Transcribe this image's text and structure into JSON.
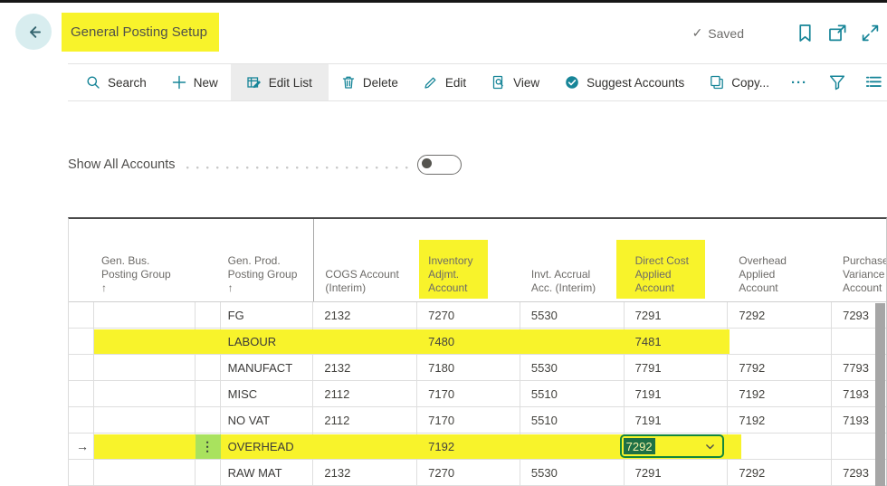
{
  "page": {
    "title": "General Posting Setup",
    "saved_check": "✓",
    "saved_label": "Saved"
  },
  "toolbar": {
    "items": [
      {
        "label": "Search",
        "icon": "search-icon"
      },
      {
        "label": "New",
        "icon": "plus-icon"
      },
      {
        "label": "Edit List",
        "icon": "edit-list-icon",
        "active": true
      },
      {
        "label": "Delete",
        "icon": "trash-icon"
      },
      {
        "label": "Edit",
        "icon": "pencil-icon"
      },
      {
        "label": "View",
        "icon": "view-icon"
      },
      {
        "label": "Suggest Accounts",
        "icon": "suggest-accounts-icon"
      },
      {
        "label": "Copy...",
        "icon": "copy-icon"
      }
    ],
    "overflow_label": "···"
  },
  "filter_row": {
    "show_all_accounts_label": "Show All Accounts",
    "toggle_state": "off"
  },
  "grid": {
    "columns": [
      {
        "field": "selector",
        "label": ""
      },
      {
        "field": "gen_bus",
        "label": "Gen. Bus.\nPosting Group",
        "sort_arrow": "↑"
      },
      {
        "field": "menu",
        "label": ""
      },
      {
        "field": "gen_prod",
        "label": "Gen. Prod.\nPosting Group",
        "sort_arrow": "↑"
      },
      {
        "field": "cogs",
        "label": "COGS Account\n(Interim)"
      },
      {
        "field": "inv_adjmt",
        "label": "Inventory\nAdjmt.\nAccount",
        "highlighted": true
      },
      {
        "field": "invt_accrual",
        "label": "Invt. Accrual\nAcc. (Interim)"
      },
      {
        "field": "direct_cost",
        "label": "Direct Cost\nApplied\nAccount",
        "highlighted": true
      },
      {
        "field": "overhead",
        "label": "Overhead\nApplied\nAccount"
      },
      {
        "field": "purchase",
        "label": "Purchase\nVariance\nAccount"
      }
    ],
    "rows": [
      {
        "gen_prod": "FG",
        "cogs": "2132",
        "inv_adjmt": "7270",
        "invt_accrual": "5530",
        "direct_cost": "7291",
        "overhead": "7292",
        "purchase": "7293"
      },
      {
        "gen_prod": "LABOUR",
        "cogs": "",
        "inv_adjmt": "7480",
        "invt_accrual": "",
        "direct_cost": "7481",
        "overhead": "",
        "purchase": "",
        "highlighted": true
      },
      {
        "gen_prod": "MANUFACT",
        "cogs": "2132",
        "inv_adjmt": "7180",
        "invt_accrual": "5530",
        "direct_cost": "7791",
        "overhead": "7792",
        "purchase": "7793"
      },
      {
        "gen_prod": "MISC",
        "cogs": "2112",
        "inv_adjmt": "7170",
        "invt_accrual": "5510",
        "direct_cost": "7191",
        "overhead": "7192",
        "purchase": "7193"
      },
      {
        "gen_prod": "NO VAT",
        "cogs": "2112",
        "inv_adjmt": "7170",
        "invt_accrual": "5510",
        "direct_cost": "7191",
        "overhead": "7192",
        "purchase": "7193"
      },
      {
        "gen_prod": "OVERHEAD",
        "cogs": "",
        "inv_adjmt": "7192",
        "invt_accrual": "",
        "overhead": "",
        "purchase": "",
        "highlighted": true,
        "selected": true,
        "editing": {
          "field": "direct_cost",
          "value": "7292"
        }
      },
      {
        "gen_prod": "RAW MAT",
        "cogs": "2132",
        "inv_adjmt": "7270",
        "invt_accrual": "5530",
        "direct_cost": "7291",
        "overhead": "7292",
        "purchase": "7293"
      }
    ]
  },
  "icons_glyphs": {
    "selected_row_arrow": "→",
    "row_menu_dots": "⋮"
  },
  "colors": {
    "accent_teal": "#178598",
    "highlight_yellow": "#f8f32b",
    "row_menu_green": "#a9e25e",
    "edit_border_green": "#14863c",
    "selection_green": "#1e7045"
  },
  "annotations": {
    "highlighted_title": true,
    "highlighted_rows": [
      "LABOUR",
      "OVERHEAD"
    ],
    "highlighted_columns": [
      "Inventory Adjmt. Account",
      "Direct Cost Applied Account"
    ]
  }
}
